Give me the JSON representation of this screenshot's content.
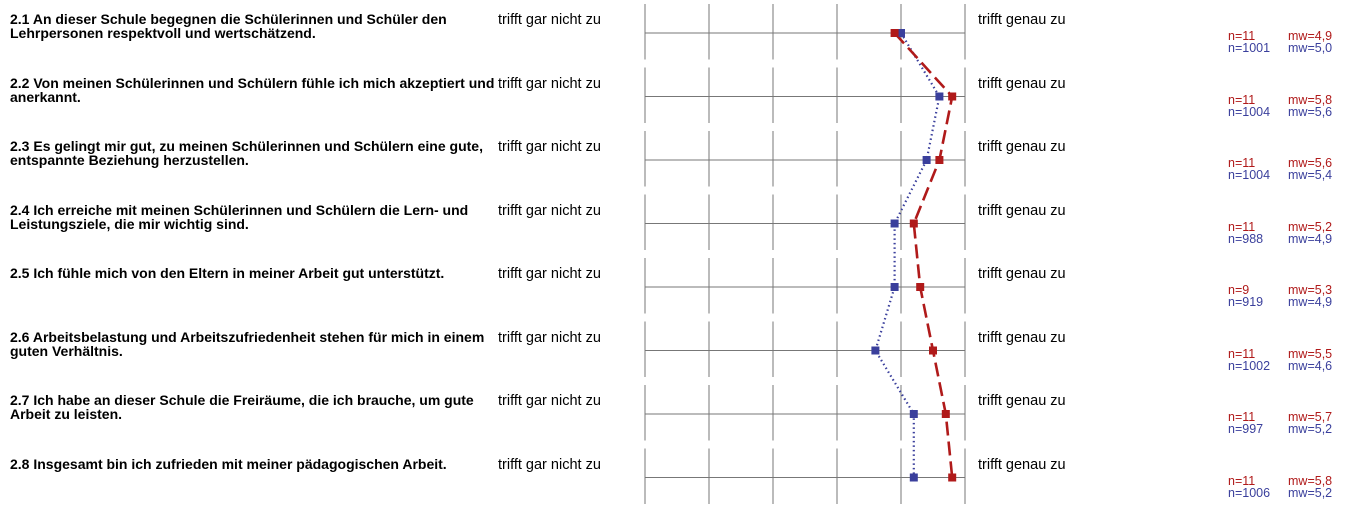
{
  "chart_data": {
    "type": "line",
    "title": "",
    "scale_labels": {
      "left": "trifft gar nicht zu",
      "right": "trifft genau zu"
    },
    "x_range": [
      1,
      6
    ],
    "colors": {
      "local": "#b01a1a",
      "reference": "#3a3f9c"
    },
    "items": [
      {
        "question": "2.1 An dieser Schule begegnen die Schülerinnen und Schüler den Lehrpersonen respektvoll und wertschätzend.",
        "local": {
          "n": "n=11",
          "mw_label": "mw=4,9",
          "mw": 4.9
        },
        "reference": {
          "n": "n=1001",
          "mw_label": "mw=5,0",
          "mw": 5.0
        }
      },
      {
        "question": "2.2 Von meinen Schülerinnen und Schülern fühle ich mich akzeptiert und anerkannt.",
        "local": {
          "n": "n=11",
          "mw_label": "mw=5,8",
          "mw": 5.8
        },
        "reference": {
          "n": "n=1004",
          "mw_label": "mw=5,6",
          "mw": 5.6
        }
      },
      {
        "question": "2.3 Es gelingt mir gut, zu meinen Schülerinnen und Schülern eine gute, entspannte Beziehung herzustellen.",
        "local": {
          "n": "n=11",
          "mw_label": "mw=5,6",
          "mw": 5.6
        },
        "reference": {
          "n": "n=1004",
          "mw_label": "mw=5,4",
          "mw": 5.4
        }
      },
      {
        "question": "2.4 Ich erreiche mit meinen Schülerinnen und Schülern die Lern- und Leistungsziele, die mir wichtig sind.",
        "local": {
          "n": "n=11",
          "mw_label": "mw=5,2",
          "mw": 5.2
        },
        "reference": {
          "n": "n=988",
          "mw_label": "mw=4,9",
          "mw": 4.9
        }
      },
      {
        "question": "2.5 Ich fühle mich von den Eltern in meiner Arbeit gut unterstützt.",
        "local": {
          "n": "n=9",
          "mw_label": "mw=5,3",
          "mw": 5.3
        },
        "reference": {
          "n": "n=919",
          "mw_label": "mw=4,9",
          "mw": 4.9
        }
      },
      {
        "question": "2.6 Arbeitsbelastung und Arbeitszufriedenheit stehen für mich in einem guten Verhältnis.",
        "local": {
          "n": "n=11",
          "mw_label": "mw=5,5",
          "mw": 5.5
        },
        "reference": {
          "n": "n=1002",
          "mw_label": "mw=4,6",
          "mw": 4.6
        }
      },
      {
        "question": "2.7 Ich habe an dieser Schule die Freiräume, die ich brauche, um gute Arbeit zu leisten.",
        "local": {
          "n": "n=11",
          "mw_label": "mw=5,7",
          "mw": 5.7
        },
        "reference": {
          "n": "n=997",
          "mw_label": "mw=5,2",
          "mw": 5.2
        }
      },
      {
        "question": "2.8 Insgesamt bin ich zufrieden mit meiner pädagogischen Arbeit.",
        "local": {
          "n": "n=11",
          "mw_label": "mw=5,8",
          "mw": 5.8
        },
        "reference": {
          "n": "n=1006",
          "mw_label": "mw=5,2",
          "mw": 5.2
        }
      }
    ]
  }
}
